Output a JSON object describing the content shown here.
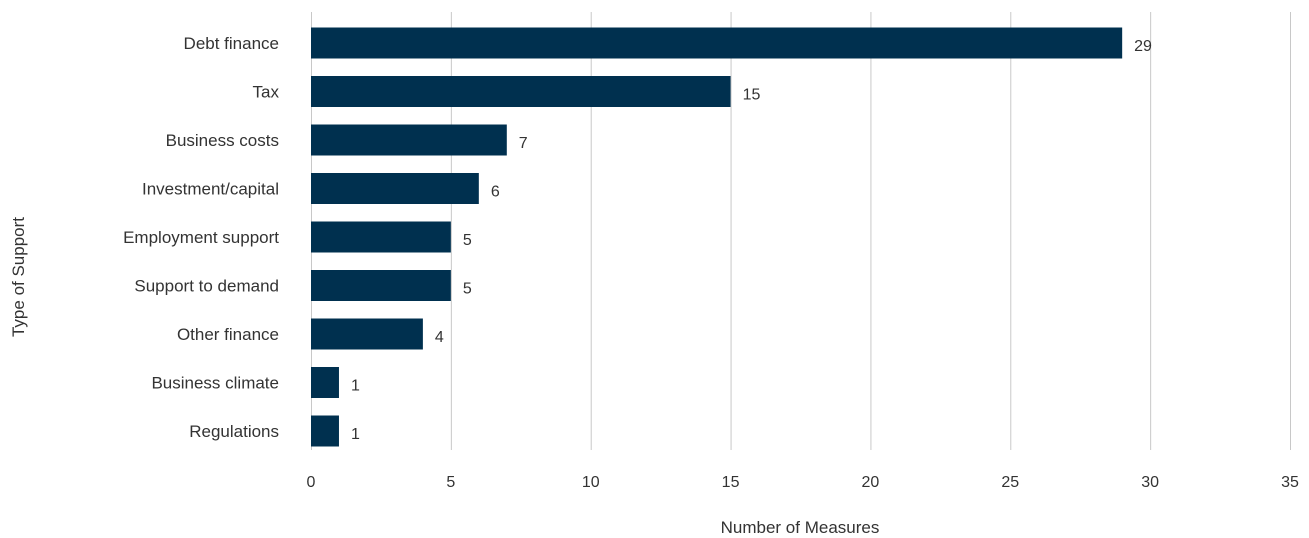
{
  "chart_data": {
    "type": "bar",
    "orientation": "horizontal",
    "categories": [
      "Debt finance",
      "Tax",
      "Business costs",
      "Investment/capital",
      "Employment support",
      "Support to demand",
      "Other finance",
      "Business climate",
      "Regulations"
    ],
    "values": [
      29,
      15,
      7,
      6,
      5,
      5,
      4,
      1,
      1
    ],
    "data_labels": [
      "29",
      "15",
      "7",
      "6",
      "5",
      "5",
      "4",
      "1",
      "1"
    ],
    "xlabel": "Number of Measures",
    "ylabel": "Type of Support",
    "xlim": [
      0,
      35
    ],
    "x_ticks": [
      0,
      5,
      10,
      15,
      20,
      25,
      30,
      35
    ],
    "x_tick_labels": [
      "0",
      "5",
      "10",
      "15",
      "20",
      "25",
      "30",
      "35"
    ],
    "grid": "vertical",
    "legend": "none",
    "bar_color": "#00304f"
  }
}
